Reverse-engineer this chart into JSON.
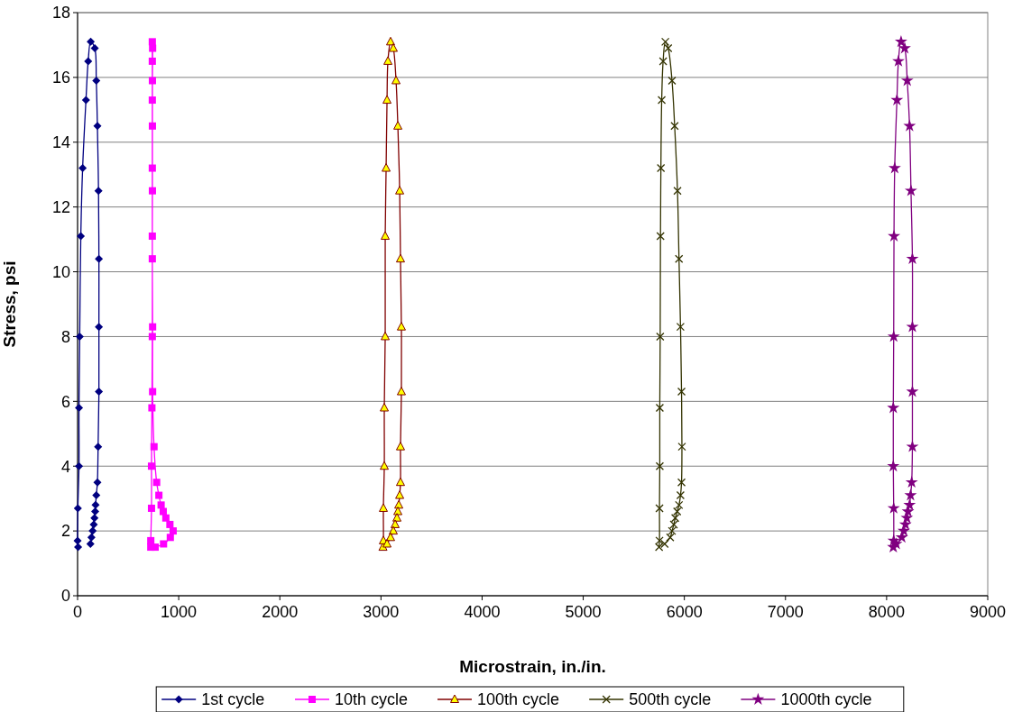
{
  "chart_data": {
    "type": "line",
    "xlabel": "Microstrain, in./in.",
    "ylabel": "Stress, psi",
    "xlim": [
      0,
      9000
    ],
    "xticks": [
      0,
      1000,
      2000,
      3000,
      4000,
      5000,
      6000,
      7000,
      8000,
      9000
    ],
    "ylim": [
      0,
      18
    ],
    "yticks": [
      0,
      2,
      4,
      6,
      8,
      10,
      12,
      14,
      16,
      18
    ],
    "grid": "y",
    "legend": "bottom",
    "series": [
      {
        "name": "1st cycle",
        "color": "#000080",
        "marker": "diamond",
        "x": [
          5,
          0,
          3,
          14,
          14,
          21,
          32,
          50,
          83,
          105,
          130,
          170,
          185,
          196,
          207,
          211,
          211,
          211,
          203,
          196,
          185,
          178,
          174,
          167,
          160,
          149,
          137,
          127
        ],
        "values": [
          1.5,
          1.7,
          2.7,
          4.0,
          5.8,
          8.0,
          11.1,
          13.2,
          15.3,
          16.5,
          17.1,
          16.9,
          15.9,
          14.5,
          12.5,
          10.4,
          8.3,
          6.3,
          4.6,
          3.5,
          3.1,
          2.8,
          2.6,
          2.4,
          2.2,
          2.0,
          1.8,
          1.6
        ]
      },
      {
        "name": "10th cycle",
        "color": "#ff00ff",
        "marker": "square",
        "x": [
          724,
          724,
          731,
          731,
          735,
          739,
          739,
          739,
          739,
          739,
          739,
          742,
          740,
          740,
          740,
          739,
          742,
          742,
          756,
          782,
          804,
          826,
          847,
          873,
          913,
          945,
          917,
          850,
          767
        ],
        "values": [
          1.5,
          1.7,
          2.7,
          4.0,
          5.8,
          8.0,
          11.1,
          13.2,
          15.3,
          16.5,
          17.1,
          16.9,
          15.9,
          14.5,
          12.5,
          10.4,
          8.3,
          6.3,
          4.6,
          3.5,
          3.1,
          2.8,
          2.6,
          2.4,
          2.2,
          2.0,
          1.8,
          1.6,
          1.5
        ]
      },
      {
        "name": "100th cycle",
        "color": "#800000",
        "marker": "triangle",
        "x": [
          3020,
          3024,
          3024,
          3033,
          3033,
          3042,
          3042,
          3051,
          3060,
          3069,
          3095,
          3122,
          3149,
          3167,
          3185,
          3193,
          3202,
          3202,
          3193,
          3193,
          3185,
          3176,
          3167,
          3158,
          3140,
          3122,
          3095,
          3060
        ],
        "values": [
          1.5,
          1.7,
          2.7,
          4.0,
          5.8,
          8.0,
          11.1,
          13.2,
          15.3,
          16.5,
          17.1,
          16.9,
          15.9,
          14.5,
          12.5,
          10.4,
          8.3,
          6.3,
          4.6,
          3.5,
          3.1,
          2.8,
          2.6,
          2.4,
          2.2,
          2.0,
          1.8,
          1.6
        ]
      },
      {
        "name": "500th cycle",
        "color": "#333300",
        "marker": "cross",
        "x": [
          5750,
          5754,
          5754,
          5757,
          5757,
          5761,
          5764,
          5768,
          5776,
          5790,
          5812,
          5840,
          5878,
          5904,
          5932,
          5947,
          5962,
          5972,
          5976,
          5972,
          5962,
          5947,
          5929,
          5910,
          5896,
          5878,
          5860,
          5805
        ],
        "values": [
          1.5,
          1.7,
          2.7,
          4.0,
          5.8,
          8.0,
          11.1,
          13.2,
          15.3,
          16.5,
          17.1,
          16.9,
          15.9,
          14.5,
          12.5,
          10.4,
          8.3,
          6.3,
          4.6,
          3.5,
          3.1,
          2.8,
          2.6,
          2.4,
          2.2,
          2.0,
          1.8,
          1.6
        ]
      },
      {
        "name": "1000th cycle",
        "color": "#800080",
        "marker": "star",
        "x": [
          8066,
          8070,
          8070,
          8066,
          8066,
          8070,
          8073,
          8080,
          8102,
          8117,
          8143,
          8179,
          8204,
          8227,
          8241,
          8255,
          8255,
          8255,
          8255,
          8248,
          8237,
          8227,
          8211,
          8200,
          8186,
          8170,
          8150,
          8095
        ],
        "values": [
          1.5,
          1.7,
          2.7,
          4.0,
          5.8,
          8.0,
          11.1,
          13.2,
          15.3,
          16.5,
          17.1,
          16.9,
          15.9,
          14.5,
          12.5,
          10.4,
          8.3,
          6.3,
          4.6,
          3.5,
          3.1,
          2.8,
          2.6,
          2.4,
          2.2,
          2.0,
          1.8,
          1.6
        ]
      }
    ]
  }
}
